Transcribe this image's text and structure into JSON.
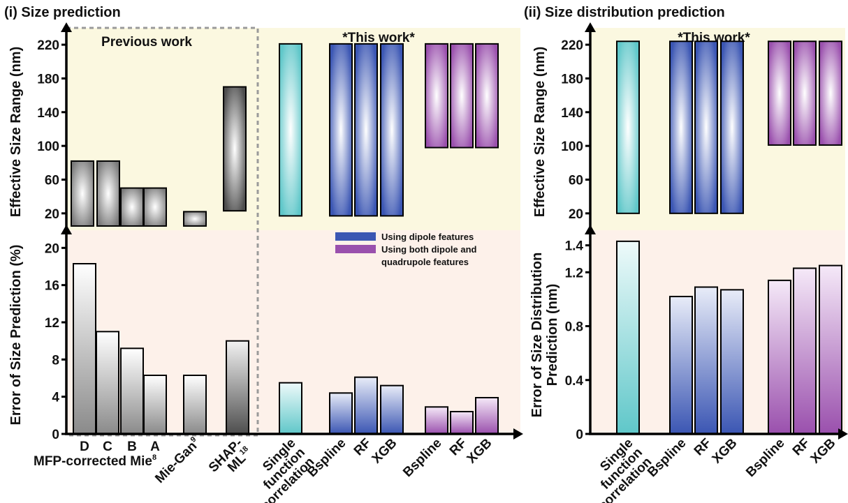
{
  "colors": {
    "bg_top": "#fbf8e0",
    "bg_bottom": "#fdf1ea",
    "gray": "#7a7a7a",
    "gray_dark": "#4e4e4e",
    "cyan": "#5fc7c9",
    "blue": "#3b56b3",
    "purple": "#9a50ad"
  },
  "panels": {
    "left_title": "(i) Size prediction",
    "right_title": "(ii) Size distribution prediction",
    "previous_work": "Previous work",
    "this_work": "*This work*",
    "this_work_right": "*This work*",
    "mfp_label_text": "MFP-corrected Mie",
    "mfp_ref": "8"
  },
  "legend": [
    {
      "label": "Using dipole features",
      "color": "#3b56b3"
    },
    {
      "label": "Using both dipole and",
      "label2": "quadrupole features",
      "color": "#9a50ad"
    }
  ],
  "chart_data": [
    {
      "id": "left-top",
      "type": "bar",
      "ylabel": "Effective Size Range (nm)",
      "ylim": [
        0,
        230
      ],
      "yticks": [
        "20",
        "60",
        "100",
        "140",
        "180",
        "220"
      ],
      "ranges": [
        {
          "category": "D",
          "low": 5,
          "high": 82,
          "color": "gray"
        },
        {
          "category": "C",
          "low": 5,
          "high": 82,
          "color": "gray"
        },
        {
          "category": "B",
          "low": 5,
          "high": 50,
          "color": "gray"
        },
        {
          "category": "A",
          "low": 5,
          "high": 50,
          "color": "gray"
        },
        {
          "category": "Mie-Gan",
          "low": 5,
          "high": 22,
          "color": "gray"
        },
        {
          "category": "SHAP-ML",
          "low": 23,
          "high": 170,
          "color": "gray_dark"
        },
        {
          "category": "Single function correlation",
          "low": 17,
          "high": 221,
          "color": "cyan"
        },
        {
          "category": "Bspline",
          "low": 17,
          "high": 221,
          "color": "blue"
        },
        {
          "category": "RF",
          "low": 17,
          "high": 221,
          "color": "blue"
        },
        {
          "category": "XGB",
          "low": 17,
          "high": 221,
          "color": "blue"
        },
        {
          "category": "Bspline",
          "low": 98,
          "high": 221,
          "color": "purple"
        },
        {
          "category": "RF",
          "low": 98,
          "high": 221,
          "color": "purple"
        },
        {
          "category": "XGB",
          "low": 98,
          "high": 221,
          "color": "purple"
        }
      ]
    },
    {
      "id": "left-bottom",
      "type": "bar",
      "ylabel": "Error of Size Prediction (%)",
      "ylim": [
        0,
        21
      ],
      "yticks": [
        "0",
        "4",
        "8",
        "12",
        "16",
        "20"
      ],
      "values": [
        {
          "category": "D",
          "value": 18.3,
          "color": "gray"
        },
        {
          "category": "C",
          "value": 11.0,
          "color": "gray"
        },
        {
          "category": "B",
          "value": 9.2,
          "color": "gray"
        },
        {
          "category": "A",
          "value": 6.3,
          "color": "gray"
        },
        {
          "category": "Mie-Gan",
          "value": 6.3,
          "color": "gray"
        },
        {
          "category": "SHAP-ML",
          "value": 10.0,
          "color": "gray_dark"
        },
        {
          "category": "Single function correlation",
          "value": 5.5,
          "color": "cyan"
        },
        {
          "category": "Bspline",
          "value": 4.4,
          "color": "blue"
        },
        {
          "category": "RF",
          "value": 6.1,
          "color": "blue"
        },
        {
          "category": "XGB",
          "value": 5.2,
          "color": "blue"
        },
        {
          "category": "Bspline",
          "value": 2.9,
          "color": "purple"
        },
        {
          "category": "RF",
          "value": 2.4,
          "color": "purple"
        },
        {
          "category": "XGB",
          "value": 3.9,
          "color": "purple"
        }
      ],
      "cat_labels": [
        {
          "text": "D"
        },
        {
          "text": "C"
        },
        {
          "text": "B"
        },
        {
          "text": "A"
        },
        {
          "text": "Mie-Gan",
          "sup": "9"
        },
        {
          "text": "SHAP-",
          "line2": "ML",
          "sup": "18"
        },
        {
          "text": "Single",
          "line2": "function",
          "line3": "correlation"
        },
        {
          "text": "Bspline"
        },
        {
          "text": "RF"
        },
        {
          "text": "XGB"
        },
        {
          "text": "Bspline"
        },
        {
          "text": "RF"
        },
        {
          "text": "XGB"
        }
      ]
    },
    {
      "id": "right-top",
      "type": "bar",
      "ylabel": "Effective Size Range (nm)",
      "ylim": [
        0,
        230
      ],
      "yticks": [
        "20",
        "60",
        "100",
        "140",
        "180",
        "220"
      ],
      "ranges": [
        {
          "category": "Single function correlation",
          "low": 20,
          "high": 224,
          "color": "cyan"
        },
        {
          "category": "Bspline",
          "low": 20,
          "high": 224,
          "color": "blue"
        },
        {
          "category": "RF",
          "low": 20,
          "high": 224,
          "color": "blue"
        },
        {
          "category": "XGB",
          "low": 20,
          "high": 224,
          "color": "blue"
        },
        {
          "category": "Bspline",
          "low": 101,
          "high": 224,
          "color": "purple"
        },
        {
          "category": "RF",
          "low": 101,
          "high": 224,
          "color": "purple"
        },
        {
          "category": "XGB",
          "low": 101,
          "high": 224,
          "color": "purple"
        }
      ]
    },
    {
      "id": "right-bottom",
      "type": "bar",
      "ylabel": "Error of Size Distribution",
      "ylabel2": "Prediction (nm)",
      "ylim": [
        0,
        1.45
      ],
      "yticks": [
        "0",
        "0.4",
        "0.8",
        "1.2",
        "1.4"
      ],
      "values": [
        {
          "category": "Single function correlation",
          "value": 1.43,
          "color": "cyan"
        },
        {
          "category": "Bspline",
          "value": 1.02,
          "color": "blue"
        },
        {
          "category": "RF",
          "value": 1.09,
          "color": "blue"
        },
        {
          "category": "XGB",
          "value": 1.07,
          "color": "blue"
        },
        {
          "category": "Bspline",
          "value": 1.14,
          "color": "purple"
        },
        {
          "category": "RF",
          "value": 1.23,
          "color": "purple"
        },
        {
          "category": "XGB",
          "value": 1.25,
          "color": "purple"
        }
      ],
      "cat_labels": [
        {
          "text": "Single",
          "line2": "function",
          "line3": "correlation"
        },
        {
          "text": "Bspline"
        },
        {
          "text": "RF"
        },
        {
          "text": "XGB"
        },
        {
          "text": "Bspline"
        },
        {
          "text": "RF"
        },
        {
          "text": "XGB"
        }
      ]
    }
  ]
}
